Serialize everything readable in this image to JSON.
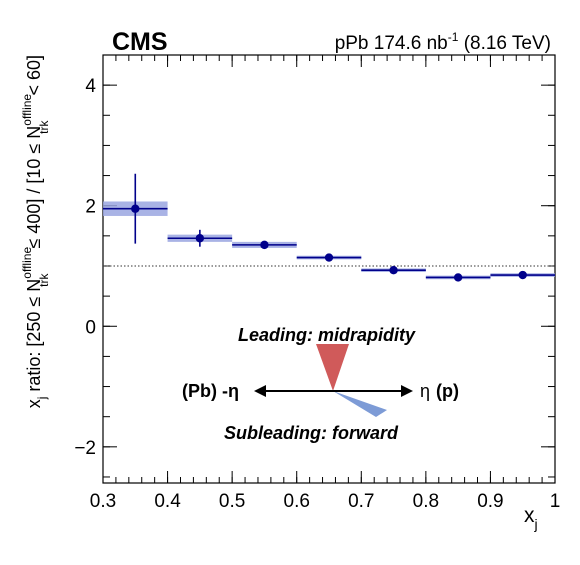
{
  "header": {
    "experiment": "CMS",
    "lumi_prefix": "pPb 174.6 nb",
    "lumi_exp": "-1",
    "energy": "(8.16 TeV)"
  },
  "axes": {
    "xlabel_main": "x",
    "xlabel_sub": "j",
    "ylabel": {
      "p1": "x",
      "p1_sub": "j",
      "p2": " ratio: [250 ≤ N",
      "p2_sup": "offline",
      "p2_sub": "trk",
      "p3": " ≤ 400] / [10 ≤ N",
      "p3_sup": "offline",
      "p3_sub": "trk",
      "p4": " < 60]"
    }
  },
  "annotations": {
    "leading": "Leading: midrapidity",
    "subleading": "Subleading: forward",
    "left_label": "(Pb) -η",
    "right_label_eta": "η",
    "right_label_p": "(p)"
  },
  "colors": {
    "points": "#00008b",
    "syst_band": "#9aa6e0",
    "leading": "#d05a5a",
    "subleading": "#7d9bd6",
    "reference": "#333333"
  },
  "chart_data": {
    "type": "scatter",
    "xlabel": "x_j",
    "ylabel": "x_j ratio: [250 ≤ N_trk^offline ≤ 400] / [10 ≤ N_trk^offline < 60]",
    "xlim": [
      0.3,
      1.0
    ],
    "ylim": [
      -2.6,
      4.5
    ],
    "xticks": [
      0.3,
      0.4,
      0.5,
      0.6,
      0.7,
      0.8,
      0.9,
      1.0
    ],
    "xtick_labels": [
      "0.3",
      "0.4",
      "0.5",
      "0.6",
      "0.7",
      "0.8",
      "0.9",
      "1"
    ],
    "yticks": [
      -2,
      0,
      2,
      4
    ],
    "ytick_labels": [
      "−2",
      "0",
      "2",
      "4"
    ],
    "reference_line": 1.0,
    "points": [
      {
        "x": 0.35,
        "y": 1.95,
        "stat": 0.58,
        "syst": 0.12,
        "xlow": 0.3,
        "xhigh": 0.4
      },
      {
        "x": 0.45,
        "y": 1.46,
        "stat": 0.14,
        "syst": 0.06,
        "xlow": 0.4,
        "xhigh": 0.5
      },
      {
        "x": 0.55,
        "y": 1.35,
        "stat": 0.06,
        "syst": 0.05,
        "xlow": 0.5,
        "xhigh": 0.6
      },
      {
        "x": 0.65,
        "y": 1.14,
        "stat": 0.04,
        "syst": 0.03,
        "xlow": 0.6,
        "xhigh": 0.7
      },
      {
        "x": 0.75,
        "y": 0.93,
        "stat": 0.03,
        "syst": 0.03,
        "xlow": 0.7,
        "xhigh": 0.8
      },
      {
        "x": 0.85,
        "y": 0.81,
        "stat": 0.03,
        "syst": 0.03,
        "xlow": 0.8,
        "xhigh": 0.9
      },
      {
        "x": 0.95,
        "y": 0.85,
        "stat": 0.04,
        "syst": 0.03,
        "xlow": 0.9,
        "xhigh": 1.0
      }
    ]
  }
}
